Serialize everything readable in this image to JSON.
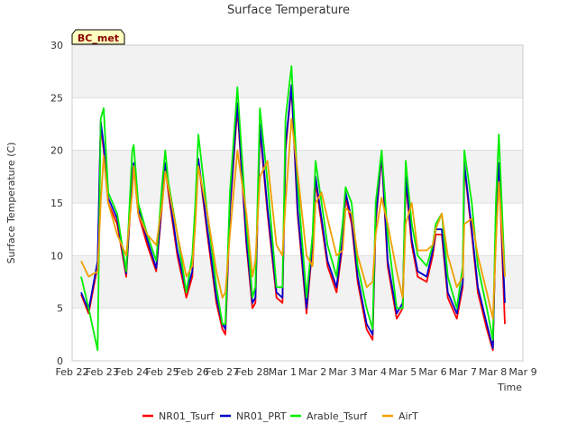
{
  "chart_data": {
    "type": "line",
    "title": "Surface Temperature",
    "xlabel": "Time",
    "ylabel": "Surface Temperature (C)",
    "badge": "BC_met",
    "ylim": [
      0,
      30
    ],
    "yticks": [
      0,
      5,
      10,
      15,
      20,
      25,
      30
    ],
    "xlim": [
      0,
      15
    ],
    "xticks": [
      {
        "pos": 0,
        "label": "Feb 22"
      },
      {
        "pos": 1,
        "label": "Feb 23"
      },
      {
        "pos": 2,
        "label": "Feb 24"
      },
      {
        "pos": 3,
        "label": "Feb 25"
      },
      {
        "pos": 4,
        "label": "Feb 26"
      },
      {
        "pos": 5,
        "label": "Feb 27"
      },
      {
        "pos": 6,
        "label": "Feb 28"
      },
      {
        "pos": 7,
        "label": "Mar 1"
      },
      {
        "pos": 8,
        "label": "Mar 2"
      },
      {
        "pos": 9,
        "label": "Mar 3"
      },
      {
        "pos": 10,
        "label": "Mar 4"
      },
      {
        "pos": 11,
        "label": "Mar 5"
      },
      {
        "pos": 12,
        "label": "Mar 6"
      },
      {
        "pos": 13,
        "label": "Mar 7"
      },
      {
        "pos": 14,
        "label": "Mar 8"
      },
      {
        "pos": 15,
        "label": "Mar 9"
      }
    ],
    "grid": true,
    "legend_position": "bottom",
    "x": [
      0.3,
      0.55,
      0.85,
      0.95,
      1.05,
      1.2,
      1.5,
      1.8,
      2.0,
      2.05,
      2.2,
      2.5,
      2.8,
      3.0,
      3.1,
      3.2,
      3.5,
      3.8,
      4.0,
      4.1,
      4.2,
      4.5,
      4.8,
      5.0,
      5.1,
      5.25,
      5.5,
      5.8,
      6.0,
      6.1,
      6.25,
      6.5,
      6.8,
      7.0,
      7.1,
      7.3,
      7.5,
      7.8,
      8.0,
      8.1,
      8.3,
      8.5,
      8.8,
      9.0,
      9.1,
      9.3,
      9.5,
      9.8,
      10.0,
      10.1,
      10.3,
      10.5,
      10.8,
      11.0,
      11.1,
      11.3,
      11.5,
      11.8,
      12.0,
      12.1,
      12.3,
      12.5,
      12.8,
      13.0,
      13.05,
      13.3,
      13.5,
      13.8,
      14.0,
      14.1,
      14.2,
      14.4
    ],
    "series": [
      {
        "name": "NR01_Tsurf",
        "color": "#ff0000",
        "values": [
          6.3,
          4.5,
          9,
          22.5,
          20,
          15,
          13,
          8,
          17.5,
          18.5,
          14,
          11,
          8.5,
          15,
          18.5,
          16,
          10,
          6,
          8,
          14,
          19,
          12,
          5.5,
          3,
          2.5,
          14,
          24,
          11,
          5,
          5.5,
          22,
          14,
          6,
          5.5,
          20,
          26,
          14,
          4.5,
          11,
          17,
          13,
          9,
          6.5,
          11,
          15.5,
          13,
          7.5,
          3,
          2,
          13,
          19.5,
          9,
          4,
          5,
          17,
          11,
          8,
          7.5,
          10,
          12,
          12,
          6,
          4,
          7,
          18.5,
          12,
          6.5,
          3,
          1,
          13,
          18.5,
          3.5
        ]
      },
      {
        "name": "NR01_PRT",
        "color": "#0000cc",
        "values": [
          6.5,
          4.8,
          9.5,
          22.8,
          20.5,
          15.5,
          13.5,
          8.3,
          17.8,
          18.8,
          14.5,
          11.5,
          8.8,
          15.5,
          18.8,
          16.5,
          10.5,
          6.5,
          8.5,
          14.5,
          19.2,
          12.5,
          6,
          3.5,
          3,
          14.5,
          24.5,
          11.5,
          5.5,
          6,
          22.5,
          14.5,
          6.5,
          6,
          20.5,
          26.2,
          14.5,
          5,
          11.5,
          17.5,
          13.5,
          9.5,
          7,
          11.5,
          16,
          13.5,
          8,
          3.5,
          2.5,
          13.5,
          19.8,
          9.5,
          4.5,
          5.5,
          17.5,
          11.5,
          8.5,
          8,
          10.5,
          12.5,
          12.5,
          6.5,
          4.5,
          7.5,
          18.8,
          12.5,
          7,
          3.5,
          1.2,
          13.5,
          18.8,
          5.5
        ]
      },
      {
        "name": "Arable_Tsurf",
        "color": "#00ee00",
        "values": [
          8,
          5,
          1,
          23,
          24,
          16,
          14,
          8.5,
          20,
          20.5,
          15,
          12,
          9.5,
          17,
          20,
          17,
          12,
          6.5,
          10,
          15,
          21.5,
          14,
          7,
          3.5,
          3.5,
          16,
          26,
          13,
          6,
          7,
          24,
          17,
          7,
          7,
          23,
          28,
          17,
          6,
          12,
          19,
          15,
          11,
          8,
          13,
          16.5,
          15,
          9,
          5,
          3,
          15,
          20,
          12,
          5,
          5,
          19,
          13,
          10,
          9,
          11,
          13,
          14,
          8,
          5,
          9,
          20,
          15,
          9,
          5,
          2,
          15,
          21.5,
          8
        ]
      },
      {
        "name": "AirT",
        "color": "#f0a000",
        "values": [
          9.5,
          8,
          8.5,
          15,
          19.5,
          15,
          12,
          10,
          16,
          18.5,
          14,
          12,
          11,
          15,
          18,
          16.5,
          12,
          8,
          9,
          13,
          18.5,
          14,
          8.5,
          6,
          6.5,
          12,
          20,
          14,
          8,
          9.5,
          17.5,
          19,
          11,
          10,
          15,
          23,
          18,
          10,
          9,
          15,
          16,
          13.5,
          10,
          10.5,
          14.5,
          14,
          10,
          7,
          7.5,
          12,
          15.5,
          13,
          8.5,
          6,
          13,
          15,
          10.5,
          10.5,
          11,
          12.5,
          14,
          10,
          7,
          8,
          13,
          13.5,
          10,
          6.5,
          4,
          11,
          17,
          8
        ]
      }
    ]
  }
}
